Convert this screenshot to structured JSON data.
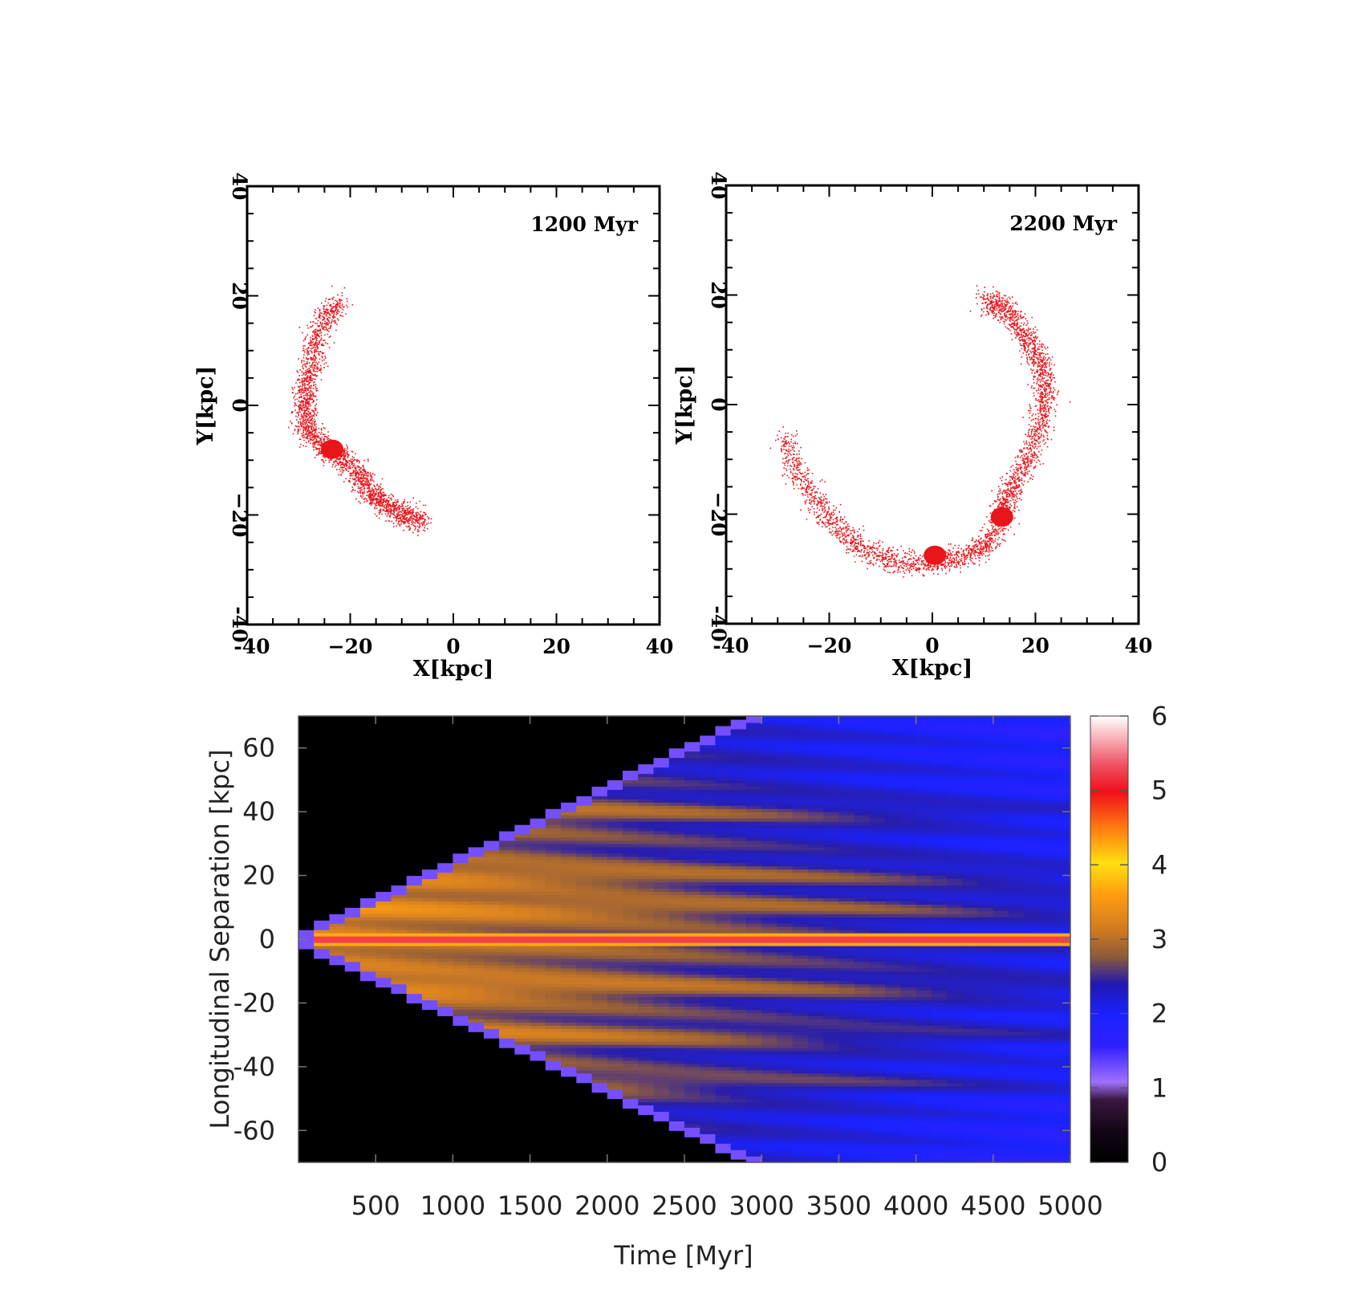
{
  "figure": {
    "chart_data": [
      {
        "type": "scatter",
        "annotation": "1200 Myr",
        "xlabel": "X[kpc]",
        "ylabel": "Y[kpc]",
        "xlim": [
          -40,
          40
        ],
        "ylim": [
          -40,
          40
        ],
        "xticks": [
          -40,
          -20,
          0,
          20,
          40
        ],
        "yticks": [
          -40,
          -20,
          0,
          20,
          40
        ],
        "xtick_labels": [
          "-40",
          "−20",
          "0",
          "20",
          "40"
        ],
        "ytick_labels": [
          "-40",
          "−20",
          "0",
          "20",
          "40"
        ],
        "marker_color": "#e8151b",
        "track": [
          [
            -22,
            19
          ],
          [
            -25,
            16
          ],
          [
            -27,
            11
          ],
          [
            -28,
            6
          ],
          [
            -29,
            2
          ],
          [
            -29,
            -2
          ],
          [
            -28,
            -5
          ],
          [
            -25,
            -8
          ],
          [
            -22,
            -9
          ],
          [
            -19,
            -12
          ],
          [
            -17,
            -15
          ],
          [
            -15,
            -17
          ],
          [
            -12,
            -19
          ],
          [
            -9,
            -20
          ],
          [
            -6,
            -21
          ]
        ],
        "clumps": [
          {
            "x": -23.5,
            "y": -8
          }
        ]
      },
      {
        "type": "scatter",
        "annotation": "2200 Myr",
        "xlabel": "X[kpc]",
        "ylabel": "Y[kpc]",
        "xlim": [
          -40,
          40
        ],
        "ylim": [
          -40,
          40
        ],
        "xticks": [
          -40,
          -20,
          0,
          20,
          40
        ],
        "yticks": [
          -40,
          -20,
          0,
          20,
          40
        ],
        "xtick_labels": [
          "-40",
          "−20",
          "0",
          "20",
          "40"
        ],
        "ytick_labels": [
          "-40",
          "−20",
          "0",
          "20",
          "40"
        ],
        "marker_color": "#e8151b",
        "track": [
          [
            -29,
            -6
          ],
          [
            -26,
            -13
          ],
          [
            -22,
            -19
          ],
          [
            -17,
            -24
          ],
          [
            -12,
            -27
          ],
          [
            -6,
            -29
          ],
          [
            0,
            -29
          ],
          [
            5,
            -28
          ],
          [
            10,
            -26
          ],
          [
            13,
            -22
          ],
          [
            14,
            -18
          ],
          [
            16,
            -14
          ],
          [
            19,
            -9
          ],
          [
            21,
            -3
          ],
          [
            22,
            2
          ],
          [
            21,
            7
          ],
          [
            19,
            11
          ],
          [
            16,
            15
          ],
          [
            13,
            18
          ],
          [
            10,
            19
          ]
        ],
        "clumps": [
          {
            "x": 0.5,
            "y": -27.5
          },
          {
            "x": 13.5,
            "y": -20.5
          }
        ]
      },
      {
        "type": "heatmap",
        "xlabel": "Time [Myr]",
        "ylabel": "Longitudinal Separation [kpc]",
        "xlim": [
          0,
          5000
        ],
        "ylim": [
          -70,
          70
        ],
        "xticks": [
          500,
          1000,
          1500,
          2000,
          2500,
          3000,
          3500,
          4000,
          4500,
          5000
        ],
        "yticks": [
          60,
          40,
          20,
          0,
          -20,
          -40,
          -60
        ],
        "colorbar": {
          "ticks": [
            6,
            5,
            4,
            3,
            2,
            1,
            0
          ],
          "range": [
            0,
            6
          ]
        },
        "colormap": [
          "#000000",
          "#2a0f3a",
          "#a070ff",
          "#2a16e8",
          "#1a22ff",
          "#c07a2c",
          "#ff9d10",
          "#ffe010",
          "#ff3a10",
          "#e8102a",
          "#ffffff"
        ],
        "envelope_front_speed_kpc_per_myr": 0.0235,
        "stream_bands_kpc": [
          0,
          10,
          20,
          40,
          -15,
          -30,
          -45
        ],
        "center_value": 5.2
      }
    ]
  }
}
